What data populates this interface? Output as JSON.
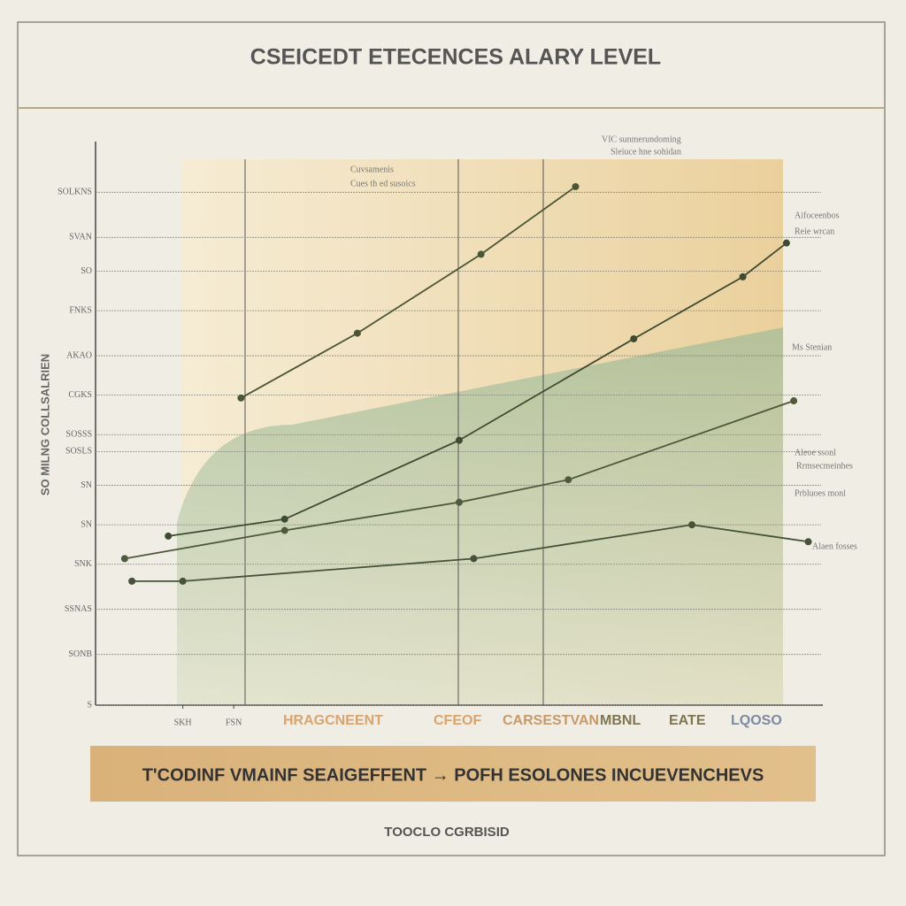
{
  "chart_data": {
    "type": "line",
    "title": "CSEICEDT ETECENCES ALARY LEVEL",
    "y_label": "SO MILNG COLLSALRIEN",
    "xlim": [
      0,
      100
    ],
    "ylim": [
      0,
      100
    ],
    "xticks": [
      {
        "value": 12,
        "label": "SKH"
      },
      {
        "value": 19,
        "label": "FSN"
      }
    ],
    "yticks": [
      {
        "value": 91,
        "label": "SOLKNS"
      },
      {
        "value": 83,
        "label": "SVAN"
      },
      {
        "value": 77,
        "label": "SO"
      },
      {
        "value": 70,
        "label": "FNKS"
      },
      {
        "value": 62,
        "label": "AKAO"
      },
      {
        "value": 55,
        "label": "CGKS"
      },
      {
        "value": 48,
        "label": "SOSSS"
      },
      {
        "value": 45,
        "label": "SOSLS"
      },
      {
        "value": 39,
        "label": "SN"
      },
      {
        "value": 32,
        "label": "SN"
      },
      {
        "value": 25,
        "label": "SNK"
      },
      {
        "value": 17,
        "label": "SSNAS"
      },
      {
        "value": 9,
        "label": "SONB"
      },
      {
        "value": 0,
        "label": "S"
      }
    ],
    "grid": true,
    "series": [
      {
        "color": "#4a5636",
        "x": [
          20,
          36,
          53,
          66
        ],
        "values": [
          54.5,
          66,
          80,
          92
        ]
      },
      {
        "color": "#3f4a32",
        "x": [
          10,
          26,
          50,
          74,
          89,
          95
        ],
        "values": [
          30,
          33,
          47,
          65,
          76,
          82
        ]
      },
      {
        "color": "#4f5a3c",
        "x": [
          4,
          26,
          50,
          65,
          96
        ],
        "values": [
          26,
          31,
          36,
          40,
          54
        ]
      },
      {
        "color": "#46523a",
        "x": [
          5,
          12,
          52,
          82,
          98
        ],
        "values": [
          22,
          22,
          26,
          32,
          29
        ]
      }
    ],
    "legend_labels": [
      {
        "text": "HRAGCNEENT",
        "color": "#dca46c"
      },
      {
        "text": "CFEOF",
        "color": "#dca46c"
      },
      {
        "text": "CARSESTVAN",
        "color": "#c99a68"
      },
      {
        "text": "MBNL",
        "color": "#7f7550"
      },
      {
        "text": "EATE",
        "color": "#7f7550"
      },
      {
        "text": "LQOSO",
        "color": "#7d8aa3"
      }
    ],
    "annotations": [
      "Cuvsamenis",
      "Cues th ed susoics",
      "VIC sunmerundoming",
      "Sleiuce hne sohidan",
      "Aifoceenbos",
      "Reie wrcan",
      "Ms Stenian",
      "Aleoe ssonl",
      "Rrmsecmeinhes",
      "Prbluoes monl",
      "Alaen fosses"
    ],
    "banner": "T'CODINF VMAINF SEAIGEFFENT → POFH ESOLONES INCUEVENCHEVS",
    "footer": "TOOCLO CGRBISID"
  }
}
